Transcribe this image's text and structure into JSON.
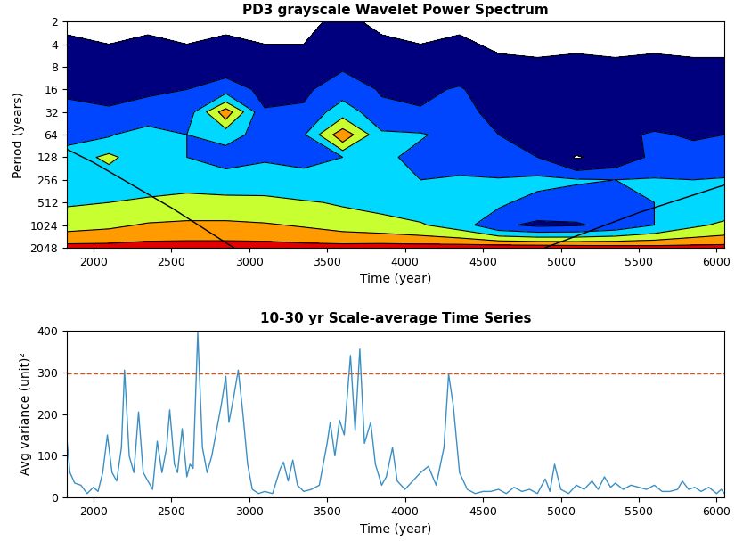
{
  "chart_data": [
    {
      "type": "contour",
      "title": "PD3 grayscale Wavelet Power Spectrum",
      "x_label": "Time (year)",
      "y_label": "Period (years)",
      "log": "y",
      "xlim": [
        1830,
        6050
      ],
      "xticks": [
        2000,
        2500,
        3000,
        3500,
        4000,
        4500,
        5000,
        5500,
        6000
      ],
      "ylim": [
        2048,
        2
      ],
      "yticks": [
        2,
        4,
        8,
        16,
        32,
        64,
        128,
        256,
        512,
        1024,
        2048
      ],
      "heatmap": {
        "x": [
          1830,
          2100,
          2350,
          2600,
          2850,
          3100,
          3350,
          3600,
          3850,
          4100,
          4350,
          4600,
          4850,
          5100,
          5350,
          5600,
          5850,
          6050
        ],
        "y": [
          2,
          4,
          8,
          16,
          32,
          64,
          128,
          256,
          512,
          1024,
          2048
        ],
        "levels": [
          0,
          1,
          2,
          3,
          4,
          5,
          6,
          7
        ],
        "colors": [
          "#ffffff",
          "#00007f",
          "#0046ff",
          "#00d8ff",
          "#c8ff30",
          "#ff9a00",
          "#e00000"
        ],
        "cells": [
          [
            0.9,
            0.8,
            0.9,
            0.8,
            0.9,
            0.8,
            0.9,
            1.1,
            0.9,
            0.8,
            0.9,
            0.7,
            0.8,
            0.7,
            0.8,
            0.7,
            0.8,
            0.7
          ],
          [
            1.1,
            1.0,
            1.1,
            1.0,
            1.1,
            1.0,
            1.0,
            1.3,
            1.1,
            1.0,
            1.1,
            0.9,
            0.9,
            0.9,
            0.9,
            0.9,
            0.9,
            0.9
          ],
          [
            1.5,
            1.4,
            1.5,
            1.4,
            1.6,
            1.3,
            1.4,
            1.9,
            1.5,
            1.4,
            1.6,
            1.2,
            1.1,
            1.2,
            1.1,
            1.2,
            1.1,
            1.1
          ],
          [
            1.9,
            1.8,
            1.9,
            2.0,
            2.6,
            1.7,
            1.8,
            2.6,
            1.9,
            1.8,
            2.1,
            1.4,
            1.3,
            1.4,
            1.3,
            1.4,
            1.3,
            1.3
          ],
          [
            2.2,
            2.1,
            2.3,
            2.4,
            5.6,
            2.1,
            2.2,
            3.6,
            2.3,
            2.1,
            2.4,
            1.6,
            1.5,
            1.5,
            1.4,
            1.6,
            1.5,
            1.5
          ],
          [
            2.8,
            2.9,
            3.6,
            3.0,
            3.2,
            2.8,
            2.9,
            5.7,
            3.2,
            3.1,
            2.6,
            2.0,
            1.9,
            1.8,
            1.8,
            2.1,
            1.9,
            2.0
          ],
          [
            3.3,
            4.3,
            3.1,
            3.0,
            2.7,
            2.9,
            2.8,
            3.0,
            3.3,
            2.6,
            2.4,
            2.2,
            2.0,
            0.9,
            1.4,
            2.2,
            2.4,
            2.3
          ],
          [
            3.2,
            3.1,
            3.3,
            3.6,
            3.4,
            3.5,
            3.3,
            3.2,
            3.1,
            3.0,
            3.2,
            3.1,
            3.3,
            3.1,
            3.0,
            3.1,
            3.0,
            3.1
          ],
          [
            3.9,
            4.0,
            4.3,
            4.4,
            4.4,
            4.3,
            4.1,
            3.9,
            3.7,
            3.5,
            3.3,
            3.2,
            2.6,
            2.5,
            2.6,
            3.0,
            3.3,
            3.4
          ],
          [
            4.6,
            4.8,
            5.1,
            5.2,
            5.2,
            5.1,
            4.9,
            4.6,
            4.4,
            4.1,
            3.5,
            2.2,
            1.8,
            1.9,
            2.3,
            3.0,
            3.8,
            4.2
          ],
          [
            6.4,
            6.4,
            6.5,
            6.5,
            6.5,
            6.5,
            6.4,
            6.4,
            6.5,
            6.5,
            6.6,
            6.7,
            6.7,
            6.6,
            6.5,
            6.4,
            6.4,
            6.4
          ]
        ]
      },
      "series": [
        {
          "color": "#000000",
          "x": [
            1830,
            2000,
            2500,
            2900
          ],
          "values": [
            100,
            150,
            600,
            2048
          ]
        },
        {
          "color": "#000000",
          "x": [
            4900,
            5500,
            6050
          ],
          "values": [
            2048,
            700,
            300
          ]
        }
      ]
    },
    {
      "type": "line",
      "title": "10-30 yr Scale-average Time Series",
      "x_label": "Time (year)",
      "y_label": "Avg variance (unit)²",
      "xlim": [
        1830,
        6050
      ],
      "xticks": [
        2000,
        2500,
        3000,
        3500,
        4000,
        4500,
        5000,
        5500,
        6000
      ],
      "ylim": [
        0,
        400
      ],
      "yticks": [
        0,
        100,
        200,
        300,
        400
      ],
      "series": [
        {
          "color": "#3b8fc4",
          "line_style": "solid",
          "x": [
            1830,
            1850,
            1880,
            1920,
            1960,
            2000,
            2030,
            2060,
            2090,
            2120,
            2150,
            2180,
            2200,
            2230,
            2260,
            2290,
            2320,
            2350,
            2380,
            2410,
            2440,
            2470,
            2490,
            2520,
            2540,
            2570,
            2600,
            2620,
            2640,
            2670,
            2700,
            2730,
            2760,
            2790,
            2820,
            2850,
            2870,
            2900,
            2930,
            2960,
            2990,
            3020,
            3060,
            3100,
            3150,
            3200,
            3220,
            3250,
            3280,
            3310,
            3350,
            3400,
            3450,
            3500,
            3520,
            3550,
            3580,
            3610,
            3650,
            3680,
            3710,
            3740,
            3780,
            3810,
            3850,
            3880,
            3920,
            3950,
            4000,
            4050,
            4100,
            4150,
            4200,
            4250,
            4280,
            4310,
            4350,
            4400,
            4450,
            4500,
            4550,
            4600,
            4650,
            4700,
            4750,
            4800,
            4850,
            4900,
            4930,
            4960,
            5000,
            5050,
            5100,
            5150,
            5200,
            5240,
            5280,
            5320,
            5350,
            5400,
            5450,
            5500,
            5550,
            5600,
            5650,
            5700,
            5750,
            5780,
            5820,
            5860,
            5900,
            5950,
            6000,
            6030,
            6050
          ],
          "values": [
            140,
            60,
            35,
            30,
            10,
            25,
            15,
            60,
            150,
            60,
            40,
            120,
            305,
            100,
            60,
            205,
            60,
            40,
            20,
            135,
            60,
            120,
            210,
            80,
            60,
            165,
            50,
            80,
            70,
            395,
            120,
            60,
            100,
            160,
            220,
            290,
            180,
            240,
            305,
            200,
            80,
            20,
            10,
            15,
            10,
            70,
            85,
            40,
            90,
            30,
            15,
            20,
            30,
            130,
            180,
            100,
            185,
            150,
            340,
            160,
            355,
            130,
            180,
            80,
            30,
            50,
            120,
            40,
            20,
            40,
            60,
            75,
            30,
            120,
            295,
            220,
            60,
            20,
            10,
            15,
            15,
            20,
            10,
            25,
            15,
            20,
            10,
            45,
            15,
            80,
            20,
            10,
            30,
            20,
            40,
            20,
            50,
            25,
            35,
            20,
            30,
            25,
            20,
            30,
            15,
            15,
            20,
            40,
            20,
            25,
            15,
            25,
            10,
            20,
            10
          ]
        },
        {
          "color": "#d95319",
          "line_style": "dashed",
          "x": [
            1830,
            6050
          ],
          "values": [
            297,
            297
          ]
        }
      ]
    }
  ]
}
